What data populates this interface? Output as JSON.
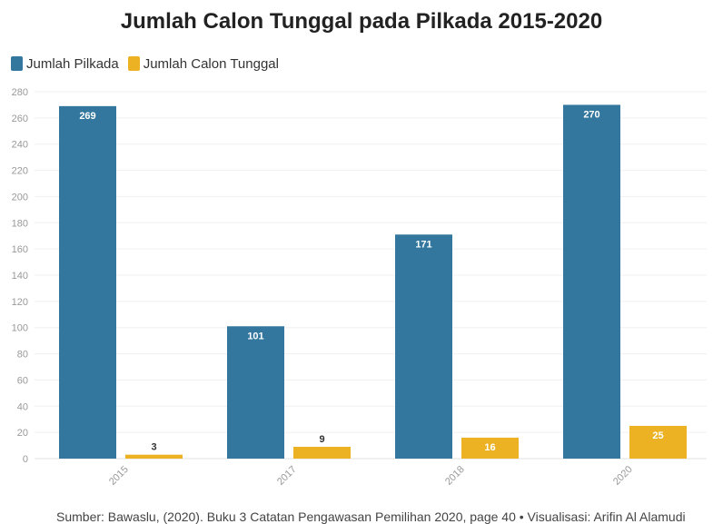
{
  "chart_data": {
    "type": "bar",
    "title": "Jumlah Calon Tunggal pada Pilkada 2015-2020",
    "categories": [
      "2015",
      "2017",
      "2018",
      "2020"
    ],
    "series": [
      {
        "name": "Jumlah Pilkada",
        "values": [
          269,
          101,
          171,
          270
        ],
        "color": "#33779e"
      },
      {
        "name": "Jumlah Calon Tunggal",
        "values": [
          3,
          9,
          16,
          25
        ],
        "color": "#ecb224"
      }
    ],
    "ylim": [
      0,
      280
    ],
    "yticks": [
      0,
      20,
      40,
      60,
      80,
      100,
      120,
      140,
      160,
      180,
      200,
      220,
      240,
      260,
      280
    ],
    "grid": true,
    "legend": "top-left",
    "xlabel": "",
    "ylabel": ""
  },
  "footer": {
    "source": "Sumber: Bawaslu, (2020). Buku 3 Catatan Pengawasan Pemilihan 2020, page 40 • Visualisasi: Arifin Al Alamudi"
  }
}
